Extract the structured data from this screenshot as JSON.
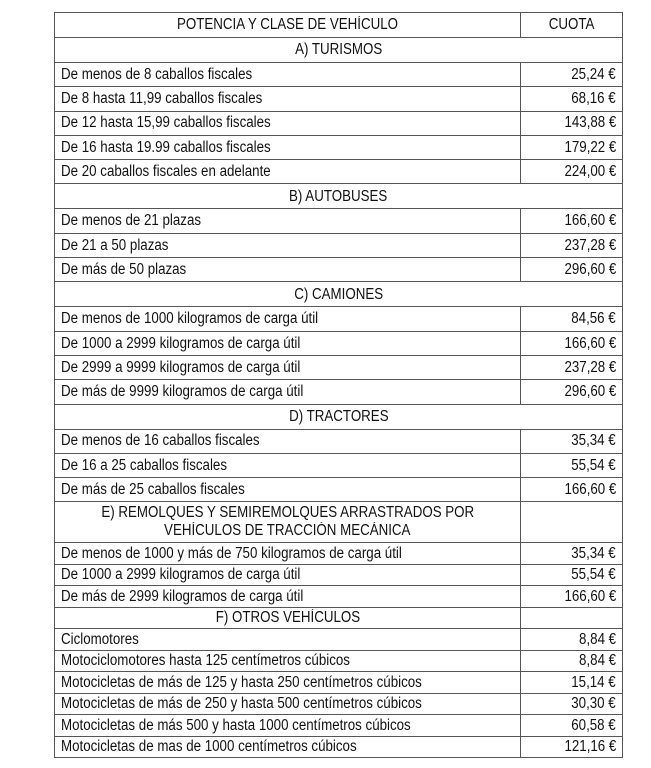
{
  "header": {
    "description": "POTENCIA Y CLASE DE VEHÍCULO",
    "fee": "CUOTA"
  },
  "sections": [
    {
      "title": "A) TURISMOS",
      "rows": [
        {
          "label": "De menos de 8 caballos fiscales",
          "fee": "25,24 €"
        },
        {
          "label": "De 8 hasta 11,99 caballos fiscales",
          "fee": "68,16 €"
        },
        {
          "label": "De 12 hasta 15,99 caballos fiscales",
          "fee": "143,88 €"
        },
        {
          "label": "De 16 hasta 19.99 caballos fiscales",
          "fee": "179,22 €"
        },
        {
          "label": "De 20 caballos fiscales en adelante",
          "fee": "224,00 €"
        }
      ]
    },
    {
      "title": "B) AUTOBUSES",
      "rows": [
        {
          "label": "De menos de 21 plazas",
          "fee": "166,60 €"
        },
        {
          "label": "De 21 a 50 plazas",
          "fee": "237,28 €"
        },
        {
          "label": "De más de 50 plazas",
          "fee": "296,60 €"
        }
      ]
    },
    {
      "title": "C) CAMIONES",
      "rows": [
        {
          "label": "De menos de 1000 kilogramos de carga útil",
          "fee": "84,56 €"
        },
        {
          "label": "De 1000 a 2999 kilogramos de carga útil",
          "fee": "166,60 €"
        },
        {
          "label": "De 2999 a 9999 kilogramos de carga útil",
          "fee": "237,28 €"
        },
        {
          "label": "De más de 9999 kilogramos de carga útil",
          "fee": "296,60 €"
        }
      ]
    },
    {
      "title": "D) TRACTORES",
      "rows": [
        {
          "label": "De menos de 16 caballos fiscales",
          "fee": "35,34 €"
        },
        {
          "label": "De 16 a 25 caballos fiscales",
          "fee": "55,54 €"
        },
        {
          "label": "De más de 25 caballos fiscales",
          "fee": "166,60 €"
        }
      ]
    },
    {
      "title_line1": "E) REMOLQUES Y SEMIREMOLQUES ARRASTRADOS POR",
      "title_line2": "VEHÍCULOS DE TRACCIÓN MECÁNICA",
      "rows": [
        {
          "label": "De menos de 1000 y más de 750 kilogramos de carga útil",
          "fee": "35,34 €"
        },
        {
          "label": "De 1000 a 2999 kilogramos de carga útil",
          "fee": "55,54 €"
        },
        {
          "label": "De más de 2999 kilogramos de carga útil",
          "fee": "166,60 €"
        }
      ]
    },
    {
      "title": "F) OTROS VEHÍCULOS",
      "rows": [
        {
          "label": "Ciclomotores",
          "fee": "8,84 €"
        },
        {
          "label": "Motociclomotores hasta 125 centímetros cúbicos",
          "fee": "8,84 €"
        },
        {
          "label": "Motocicletas de más de 125 y hasta 250 centímetros cúbicos",
          "fee": "15,14 €"
        },
        {
          "label": "Motocicletas de más de 250 y hasta 500 centímetros cúbicos",
          "fee": "30,30 €"
        },
        {
          "label": "Motocicletas de más 500 y hasta 1000 centímetros cúbicos",
          "fee": "60,58 €"
        },
        {
          "label": "Motocicletas de mas de 1000 centímetros cúbicos",
          "fee": "121,16 €"
        }
      ]
    }
  ]
}
